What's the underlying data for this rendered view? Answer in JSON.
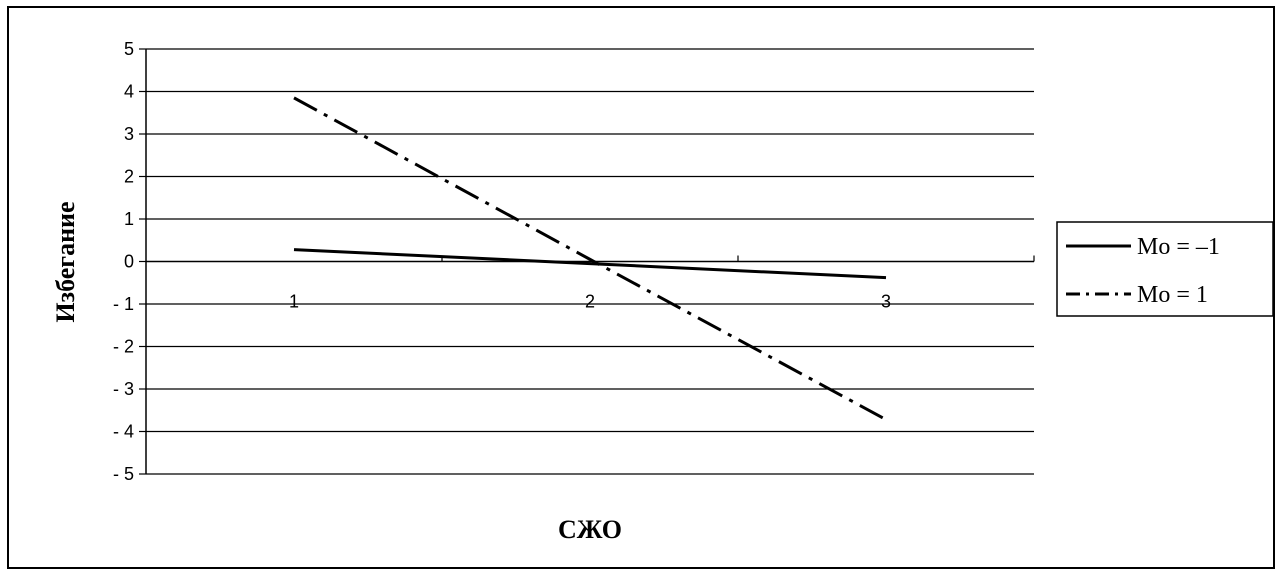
{
  "chart_data": {
    "type": "line",
    "title": "",
    "xlabel": "СЖО",
    "ylabel": "Избегание",
    "categories": [
      "1",
      "2",
      "3"
    ],
    "ylim": [
      -5,
      5
    ],
    "yticks": [
      "5",
      "4",
      "3",
      "2",
      "1",
      "0",
      "- 1",
      "- 2",
      "- 3",
      "- 4",
      "- 5"
    ],
    "grid": true,
    "legend_position": "right",
    "series": [
      {
        "name": "Mo = –1",
        "values": [
          0.28,
          -0.05,
          -0.38
        ],
        "style": "solid",
        "color": "#000000"
      },
      {
        "name": "Mo = 1",
        "values": [
          3.85,
          0.05,
          -3.72
        ],
        "style": "dash-dot",
        "color": "#000000"
      }
    ]
  }
}
